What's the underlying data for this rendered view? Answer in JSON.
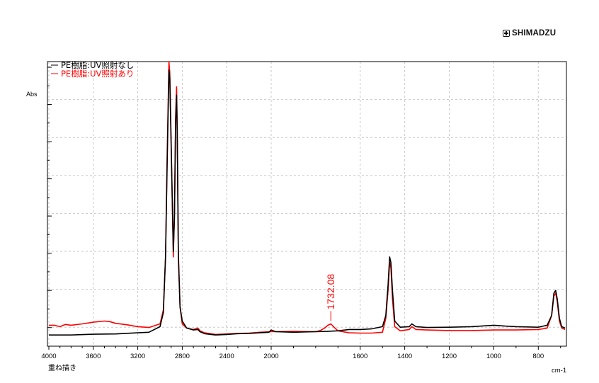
{
  "brand": {
    "text": "SHIMADZU"
  },
  "ylabel": "Abs",
  "xunit": "cm-1",
  "footer_label": "重ね描き",
  "legend": [
    {
      "label": "PE樹脂:UV照射なし",
      "color": "#000000"
    },
    {
      "label": "PE樹脂:UV照射あり",
      "color": "#ff0000"
    }
  ],
  "annotation": {
    "text": "1732.08",
    "x": 1732.08,
    "y": 0.05,
    "color": "#ff0000"
  },
  "chart_data": {
    "type": "line",
    "x_reversed": true,
    "xlim": [
      4000,
      680
    ],
    "ylim": [
      -0.02,
      1.0
    ],
    "xticks": [
      4000,
      3600,
      3200,
      2800,
      2400,
      2000,
      1600,
      1400,
      1200,
      1000,
      800
    ],
    "grid": true,
    "legend_position": "top-left",
    "xlabel": "cm-1",
    "ylabel": "Abs",
    "series": [
      {
        "name": "PE樹脂:UV照射なし",
        "color": "#000000",
        "points": [
          [
            4000,
            0.02
          ],
          [
            3800,
            0.02
          ],
          [
            3600,
            0.023
          ],
          [
            3400,
            0.024
          ],
          [
            3200,
            0.028
          ],
          [
            3100,
            0.03
          ],
          [
            3000,
            0.05
          ],
          [
            2970,
            0.1
          ],
          [
            2950,
            0.3
          ],
          [
            2935,
            0.65
          ],
          [
            2920,
            0.97
          ],
          [
            2912,
            0.94
          ],
          [
            2900,
            0.7
          ],
          [
            2880,
            0.32
          ],
          [
            2870,
            0.44
          ],
          [
            2860,
            0.78
          ],
          [
            2851,
            0.88
          ],
          [
            2845,
            0.75
          ],
          [
            2835,
            0.3
          ],
          [
            2820,
            0.12
          ],
          [
            2800,
            0.07
          ],
          [
            2760,
            0.045
          ],
          [
            2700,
            0.038
          ],
          [
            2660,
            0.04
          ],
          [
            2640,
            0.032
          ],
          [
            2600,
            0.025
          ],
          [
            2500,
            0.02
          ],
          [
            2400,
            0.022
          ],
          [
            2300,
            0.025
          ],
          [
            2200,
            0.026
          ],
          [
            2100,
            0.028
          ],
          [
            2020,
            0.03
          ],
          [
            2000,
            0.038
          ],
          [
            1980,
            0.032
          ],
          [
            1900,
            0.03
          ],
          [
            1800,
            0.032
          ],
          [
            1750,
            0.033
          ],
          [
            1700,
            0.035
          ],
          [
            1650,
            0.04
          ],
          [
            1600,
            0.04
          ],
          [
            1550,
            0.042
          ],
          [
            1500,
            0.05
          ],
          [
            1485,
            0.09
          ],
          [
            1475,
            0.2
          ],
          [
            1468,
            0.3
          ],
          [
            1462,
            0.28
          ],
          [
            1455,
            0.18
          ],
          [
            1445,
            0.07
          ],
          [
            1420,
            0.048
          ],
          [
            1380,
            0.05
          ],
          [
            1368,
            0.06
          ],
          [
            1350,
            0.05
          ],
          [
            1300,
            0.047
          ],
          [
            1200,
            0.048
          ],
          [
            1100,
            0.05
          ],
          [
            1000,
            0.055
          ],
          [
            950,
            0.052
          ],
          [
            900,
            0.05
          ],
          [
            800,
            0.048
          ],
          [
            760,
            0.055
          ],
          [
            740,
            0.09
          ],
          [
            730,
            0.17
          ],
          [
            722,
            0.18
          ],
          [
            715,
            0.15
          ],
          [
            705,
            0.08
          ],
          [
            695,
            0.05
          ],
          [
            680,
            0.045
          ]
        ]
      },
      {
        "name": "PE樹脂:UV照射あり",
        "color": "#ff0000",
        "points": [
          [
            4000,
            0.055
          ],
          [
            3950,
            0.055
          ],
          [
            3900,
            0.05
          ],
          [
            3850,
            0.058
          ],
          [
            3800,
            0.055
          ],
          [
            3700,
            0.06
          ],
          [
            3600,
            0.066
          ],
          [
            3500,
            0.07
          ],
          [
            3450,
            0.068
          ],
          [
            3400,
            0.062
          ],
          [
            3300,
            0.057
          ],
          [
            3200,
            0.05
          ],
          [
            3100,
            0.047
          ],
          [
            3000,
            0.06
          ],
          [
            2970,
            0.11
          ],
          [
            2950,
            0.3
          ],
          [
            2935,
            0.68
          ],
          [
            2920,
            1.0
          ],
          [
            2912,
            0.96
          ],
          [
            2900,
            0.72
          ],
          [
            2880,
            0.3
          ],
          [
            2870,
            0.46
          ],
          [
            2860,
            0.8
          ],
          [
            2851,
            0.91
          ],
          [
            2845,
            0.76
          ],
          [
            2835,
            0.32
          ],
          [
            2820,
            0.12
          ],
          [
            2800,
            0.06
          ],
          [
            2760,
            0.045
          ],
          [
            2700,
            0.04
          ],
          [
            2660,
            0.045
          ],
          [
            2640,
            0.035
          ],
          [
            2600,
            0.028
          ],
          [
            2500,
            0.022
          ],
          [
            2400,
            0.024
          ],
          [
            2300,
            0.026
          ],
          [
            2200,
            0.027
          ],
          [
            2100,
            0.03
          ],
          [
            2000,
            0.032
          ],
          [
            1900,
            0.033
          ],
          [
            1800,
            0.032
          ],
          [
            1780,
            0.036
          ],
          [
            1760,
            0.045
          ],
          [
            1745,
            0.055
          ],
          [
            1732,
            0.06
          ],
          [
            1720,
            0.05
          ],
          [
            1700,
            0.035
          ],
          [
            1650,
            0.028
          ],
          [
            1600,
            0.027
          ],
          [
            1550,
            0.027
          ],
          [
            1500,
            0.03
          ],
          [
            1485,
            0.08
          ],
          [
            1475,
            0.18
          ],
          [
            1468,
            0.28
          ],
          [
            1462,
            0.26
          ],
          [
            1455,
            0.15
          ],
          [
            1445,
            0.05
          ],
          [
            1420,
            0.035
          ],
          [
            1380,
            0.04
          ],
          [
            1368,
            0.05
          ],
          [
            1350,
            0.04
          ],
          [
            1300,
            0.038
          ],
          [
            1200,
            0.036
          ],
          [
            1100,
            0.036
          ],
          [
            1000,
            0.038
          ],
          [
            900,
            0.038
          ],
          [
            800,
            0.04
          ],
          [
            760,
            0.045
          ],
          [
            740,
            0.09
          ],
          [
            730,
            0.16
          ],
          [
            722,
            0.17
          ],
          [
            715,
            0.14
          ],
          [
            705,
            0.07
          ],
          [
            695,
            0.045
          ],
          [
            680,
            0.04
          ]
        ]
      }
    ]
  }
}
